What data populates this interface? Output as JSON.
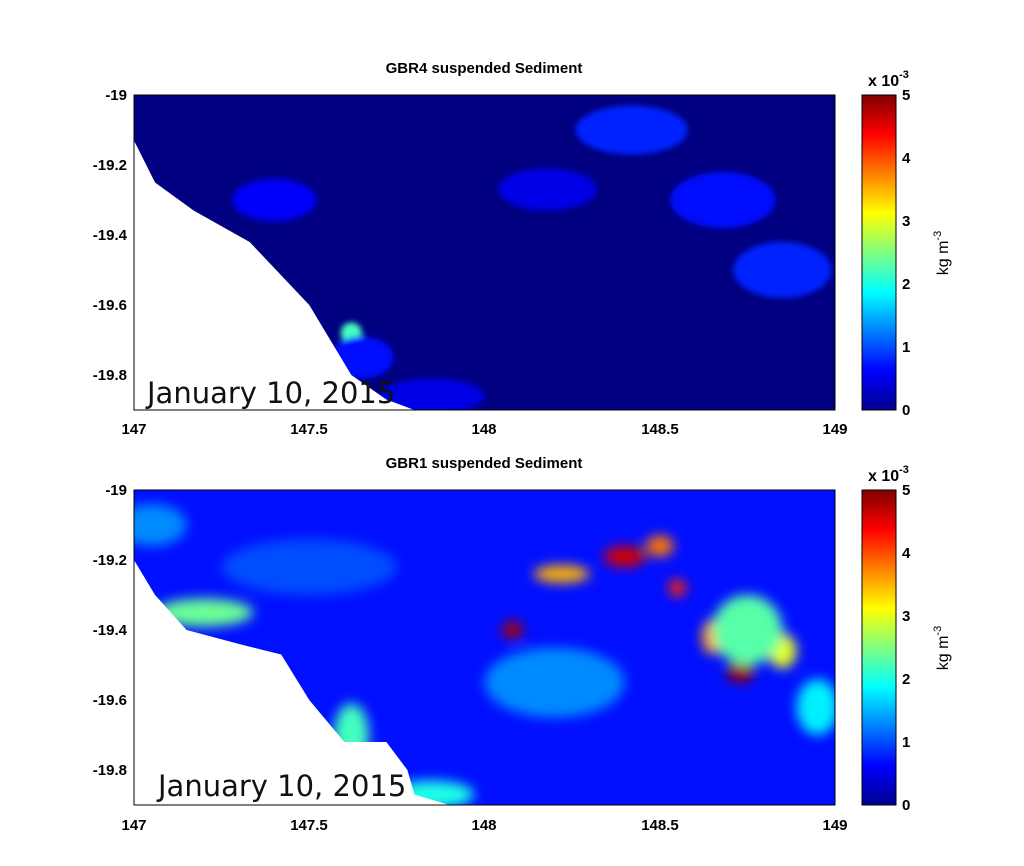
{
  "chart_data": [
    {
      "type": "heatmap",
      "title": "GBR4 suspended Sediment",
      "annotation": "January 10, 2015",
      "xlim": [
        147,
        149
      ],
      "ylim": [
        -19.9,
        -19.0
      ],
      "xticks": [
        "147",
        "147.5",
        "148",
        "148.5",
        "149"
      ],
      "yticks": [
        "-19",
        "-19.2",
        "-19.4",
        "-19.6",
        "-19.8"
      ],
      "colorbar": {
        "label_base": "kg m",
        "label_exp": "-3",
        "scale_base": "x 10",
        "scale_exp": "-3",
        "range": [
          0,
          5
        ],
        "ticks": [
          "0",
          "1",
          "2",
          "3",
          "4",
          "5"
        ],
        "colormap": "jet"
      },
      "background_value": 0.0,
      "land_polygon": [
        [
          147,
          -19.13
        ],
        [
          147.06,
          -19.25
        ],
        [
          147.17,
          -19.33
        ],
        [
          147.33,
          -19.42
        ],
        [
          147.5,
          -19.6
        ],
        [
          147.62,
          -19.8
        ],
        [
          147.72,
          -19.87
        ],
        [
          147.8,
          -19.9
        ],
        [
          147,
          -19.9
        ]
      ],
      "features": [
        {
          "lon": 147.62,
          "lat": -19.68,
          "value": 2.2,
          "rlon": 0.03,
          "rlat": 0.03
        },
        {
          "lon": 147.4,
          "lat": -19.3,
          "value": 0.6,
          "rlon": 0.12,
          "rlat": 0.06
        },
        {
          "lon": 147.65,
          "lat": -19.75,
          "value": 0.7,
          "rlon": 0.09,
          "rlat": 0.06
        },
        {
          "lon": 147.85,
          "lat": -19.86,
          "value": 0.5,
          "rlon": 0.15,
          "rlat": 0.05
        },
        {
          "lon": 148.18,
          "lat": -19.27,
          "value": 0.5,
          "rlon": 0.14,
          "rlat": 0.06
        },
        {
          "lon": 148.42,
          "lat": -19.1,
          "value": 0.8,
          "rlon": 0.16,
          "rlat": 0.07
        },
        {
          "lon": 148.68,
          "lat": -19.3,
          "value": 0.7,
          "rlon": 0.15,
          "rlat": 0.08
        },
        {
          "lon": 148.85,
          "lat": -19.5,
          "value": 0.8,
          "rlon": 0.14,
          "rlat": 0.08
        }
      ]
    },
    {
      "type": "heatmap",
      "title": "GBR1 suspended Sediment",
      "annotation": "January 10, 2015",
      "xlim": [
        147,
        149
      ],
      "ylim": [
        -19.9,
        -19.0
      ],
      "xticks": [
        "147",
        "147.5",
        "148",
        "148.5",
        "149"
      ],
      "yticks": [
        "-19",
        "-19.2",
        "-19.4",
        "-19.6",
        "-19.8"
      ],
      "colorbar": {
        "label_base": "kg m",
        "label_exp": "-3",
        "scale_base": "x 10",
        "scale_exp": "-3",
        "range": [
          0,
          5
        ],
        "ticks": [
          "0",
          "1",
          "2",
          "3",
          "4",
          "5"
        ],
        "colormap": "jet"
      },
      "background_value": 0.7,
      "land_polygon": [
        [
          147,
          -19.2
        ],
        [
          147.06,
          -19.3
        ],
        [
          147.15,
          -19.4
        ],
        [
          147.3,
          -19.44
        ],
        [
          147.42,
          -19.47
        ],
        [
          147.5,
          -19.6
        ],
        [
          147.6,
          -19.72
        ],
        [
          147.72,
          -19.72
        ],
        [
          147.78,
          -19.8
        ],
        [
          147.8,
          -19.87
        ],
        [
          147.9,
          -19.9
        ],
        [
          147,
          -19.9
        ]
      ],
      "features": [
        {
          "lon": 147.05,
          "lat": -19.1,
          "value": 1.3,
          "rlon": 0.1,
          "rlat": 0.06
        },
        {
          "lon": 147.2,
          "lat": -19.35,
          "value": 2.4,
          "rlon": 0.14,
          "rlat": 0.04
        },
        {
          "lon": 147.62,
          "lat": -19.7,
          "value": 2.2,
          "rlon": 0.05,
          "rlat": 0.09
        },
        {
          "lon": 147.85,
          "lat": -19.87,
          "value": 2.0,
          "rlon": 0.12,
          "rlat": 0.04
        },
        {
          "lon": 148.08,
          "lat": -19.4,
          "value": 4.8,
          "rlon": 0.03,
          "rlat": 0.025
        },
        {
          "lon": 148.22,
          "lat": -19.24,
          "value": 3.5,
          "rlon": 0.08,
          "rlat": 0.025
        },
        {
          "lon": 148.4,
          "lat": -19.19,
          "value": 4.6,
          "rlon": 0.06,
          "rlat": 0.03
        },
        {
          "lon": 148.5,
          "lat": -19.16,
          "value": 3.8,
          "rlon": 0.04,
          "rlat": 0.03
        },
        {
          "lon": 148.55,
          "lat": -19.28,
          "value": 4.2,
          "rlon": 0.025,
          "rlat": 0.025
        },
        {
          "lon": 148.65,
          "lat": -19.42,
          "value": 3.6,
          "rlon": 0.03,
          "rlat": 0.05
        },
        {
          "lon": 148.73,
          "lat": -19.52,
          "value": 4.9,
          "rlon": 0.04,
          "rlat": 0.03
        },
        {
          "lon": 148.85,
          "lat": -19.46,
          "value": 3.0,
          "rlon": 0.04,
          "rlat": 0.05
        },
        {
          "lon": 148.75,
          "lat": -19.4,
          "value": 2.3,
          "rlon": 0.1,
          "rlat": 0.1
        },
        {
          "lon": 148.95,
          "lat": -19.62,
          "value": 1.8,
          "rlon": 0.06,
          "rlat": 0.08
        },
        {
          "lon": 148.2,
          "lat": -19.55,
          "value": 1.3,
          "rlon": 0.2,
          "rlat": 0.1
        },
        {
          "lon": 147.5,
          "lat": -19.22,
          "value": 1.0,
          "rlon": 0.25,
          "rlat": 0.08
        }
      ]
    }
  ]
}
